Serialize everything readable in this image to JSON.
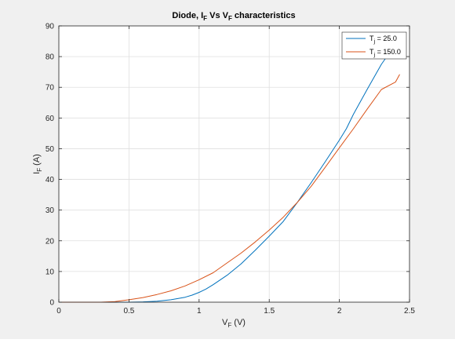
{
  "chart_data": {
    "type": "line",
    "title": {
      "main": "Diode, I",
      "sub1": "F",
      "mid": " Vs V",
      "sub2": "F",
      "tail": " characteristics"
    },
    "xlabel": {
      "main": "V",
      "sub": "F",
      "tail": " (V)"
    },
    "ylabel": {
      "main": "I",
      "sub": "F",
      "tail": " (A)"
    },
    "xlim": [
      0,
      2.5
    ],
    "ylim": [
      0,
      90
    ],
    "xticks": [
      0,
      0.5,
      1,
      1.5,
      2,
      2.5
    ],
    "xtick_labels": [
      "0",
      "0.5",
      "1",
      "1.5",
      "2",
      "2.5"
    ],
    "yticks": [
      0,
      10,
      20,
      30,
      40,
      50,
      60,
      70,
      80,
      90
    ],
    "ytick_labels": [
      "0",
      "10",
      "20",
      "30",
      "40",
      "50",
      "60",
      "70",
      "80",
      "90"
    ],
    "grid": true,
    "legend_position": "top-right",
    "series": [
      {
        "label": {
          "main": "T",
          "sub": "j",
          "tail": " = 25.0"
        },
        "color": "#0072bd",
        "x": [
          0,
          0.3,
          0.5,
          0.6,
          0.7,
          0.8,
          0.9,
          0.95,
          1.0,
          1.05,
          1.1,
          1.2,
          1.3,
          1.4,
          1.5,
          1.6,
          1.7,
          1.8,
          1.9,
          2.0,
          2.05,
          2.1,
          2.2,
          2.3,
          2.35
        ],
        "y": [
          0,
          0,
          0,
          0.1,
          0.3,
          0.8,
          1.6,
          2.3,
          3.2,
          4.3,
          5.7,
          8.8,
          12.5,
          16.9,
          21.5,
          26.3,
          32.5,
          39.0,
          45.8,
          52.8,
          56.5,
          61.2,
          69.5,
          77.5,
          80.8
        ]
      },
      {
        "label": {
          "main": "T",
          "sub": "j",
          "tail": " = 150.0"
        },
        "color": "#d95319",
        "x": [
          0,
          0.3,
          0.4,
          0.5,
          0.6,
          0.7,
          0.8,
          0.9,
          1.0,
          1.1,
          1.2,
          1.3,
          1.4,
          1.5,
          1.6,
          1.7,
          1.8,
          1.9,
          2.0,
          2.1,
          2.2,
          2.3,
          2.4,
          2.43
        ],
        "y": [
          0,
          0,
          0.2,
          0.8,
          1.5,
          2.5,
          3.7,
          5.3,
          7.3,
          9.6,
          12.8,
          16.0,
          19.6,
          23.5,
          27.7,
          32.5,
          37.8,
          44.0,
          50.3,
          56.5,
          63.0,
          69.3,
          71.7,
          74.2
        ]
      }
    ]
  }
}
